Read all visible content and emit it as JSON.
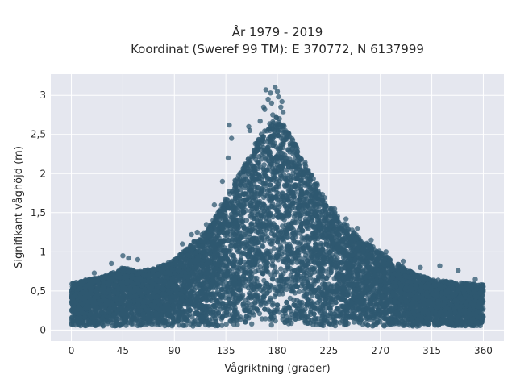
{
  "chart_data": {
    "type": "scatter",
    "title_lines": [
      "År 1979 - 2019",
      "Koordinat (Sweref 99 TM): E 370772, N 6137999"
    ],
    "xlabel": "Vågriktning (grader)",
    "ylabel": "Signifikant våghöjd (m)",
    "xlim": [
      -18,
      378
    ],
    "ylim": [
      -0.14,
      3.27
    ],
    "x_ticks": [
      0,
      45,
      90,
      135,
      180,
      225,
      270,
      315,
      360
    ],
    "y_ticks": [
      0,
      0.5,
      1,
      1.5,
      2,
      2.5,
      3
    ],
    "y_tick_labels": [
      "0",
      "0,5",
      "1",
      "1,5",
      "2",
      "2,5",
      "3"
    ],
    "grid": true,
    "legend": "none",
    "marker_color": "#2f5870",
    "plot_background": "#e5e7ef",
    "envelope": {
      "direction": [
        0,
        15,
        30,
        45,
        60,
        75,
        90,
        105,
        120,
        135,
        150,
        165,
        180,
        195,
        210,
        225,
        240,
        255,
        270,
        285,
        300,
        315,
        330,
        345,
        360
      ],
      "max_height": [
        0.6,
        0.65,
        0.7,
        0.8,
        0.75,
        0.8,
        0.9,
        1.1,
        1.3,
        1.7,
        2.1,
        2.5,
        2.75,
        2.4,
        2.0,
        1.6,
        1.35,
        1.15,
        1.0,
        0.85,
        0.72,
        0.65,
        0.62,
        0.6,
        0.58
      ],
      "min_height": 0.05
    },
    "outliers": [
      {
        "x": 155,
        "y": 2.6
      },
      {
        "x": 156,
        "y": 2.55
      },
      {
        "x": 160,
        "y": 2.3
      },
      {
        "x": 165,
        "y": 2.67
      },
      {
        "x": 168,
        "y": 2.85
      },
      {
        "x": 169,
        "y": 2.82
      },
      {
        "x": 170,
        "y": 3.07
      },
      {
        "x": 172,
        "y": 2.95
      },
      {
        "x": 174,
        "y": 3.03
      },
      {
        "x": 175,
        "y": 2.9
      },
      {
        "x": 176,
        "y": 2.75
      },
      {
        "x": 178,
        "y": 3.1
      },
      {
        "x": 180,
        "y": 3.05
      },
      {
        "x": 181,
        "y": 2.98
      },
      {
        "x": 183,
        "y": 2.85
      },
      {
        "x": 184,
        "y": 2.92
      },
      {
        "x": 185,
        "y": 2.78
      },
      {
        "x": 187,
        "y": 2.55
      },
      {
        "x": 190,
        "y": 2.5
      },
      {
        "x": 193,
        "y": 2.38
      },
      {
        "x": 200,
        "y": 2.2
      },
      {
        "x": 205,
        "y": 2.05
      },
      {
        "x": 210,
        "y": 1.98
      },
      {
        "x": 215,
        "y": 1.85
      },
      {
        "x": 230,
        "y": 1.55
      },
      {
        "x": 240,
        "y": 1.42
      },
      {
        "x": 250,
        "y": 1.3
      },
      {
        "x": 262,
        "y": 1.15
      },
      {
        "x": 275,
        "y": 1.0
      },
      {
        "x": 290,
        "y": 0.88
      },
      {
        "x": 305,
        "y": 0.8
      },
      {
        "x": 322,
        "y": 0.82
      },
      {
        "x": 338,
        "y": 0.76
      },
      {
        "x": 353,
        "y": 0.65
      },
      {
        "x": 58,
        "y": 0.9
      },
      {
        "x": 50,
        "y": 0.92
      },
      {
        "x": 45,
        "y": 0.95
      },
      {
        "x": 35,
        "y": 0.85
      },
      {
        "x": 20,
        "y": 0.73
      },
      {
        "x": 97,
        "y": 1.1
      },
      {
        "x": 105,
        "y": 1.22
      },
      {
        "x": 110,
        "y": 1.25
      },
      {
        "x": 118,
        "y": 1.35
      },
      {
        "x": 125,
        "y": 1.6
      },
      {
        "x": 132,
        "y": 1.9
      },
      {
        "x": 137,
        "y": 2.2
      },
      {
        "x": 140,
        "y": 2.45
      },
      {
        "x": 138,
        "y": 2.62
      }
    ]
  }
}
